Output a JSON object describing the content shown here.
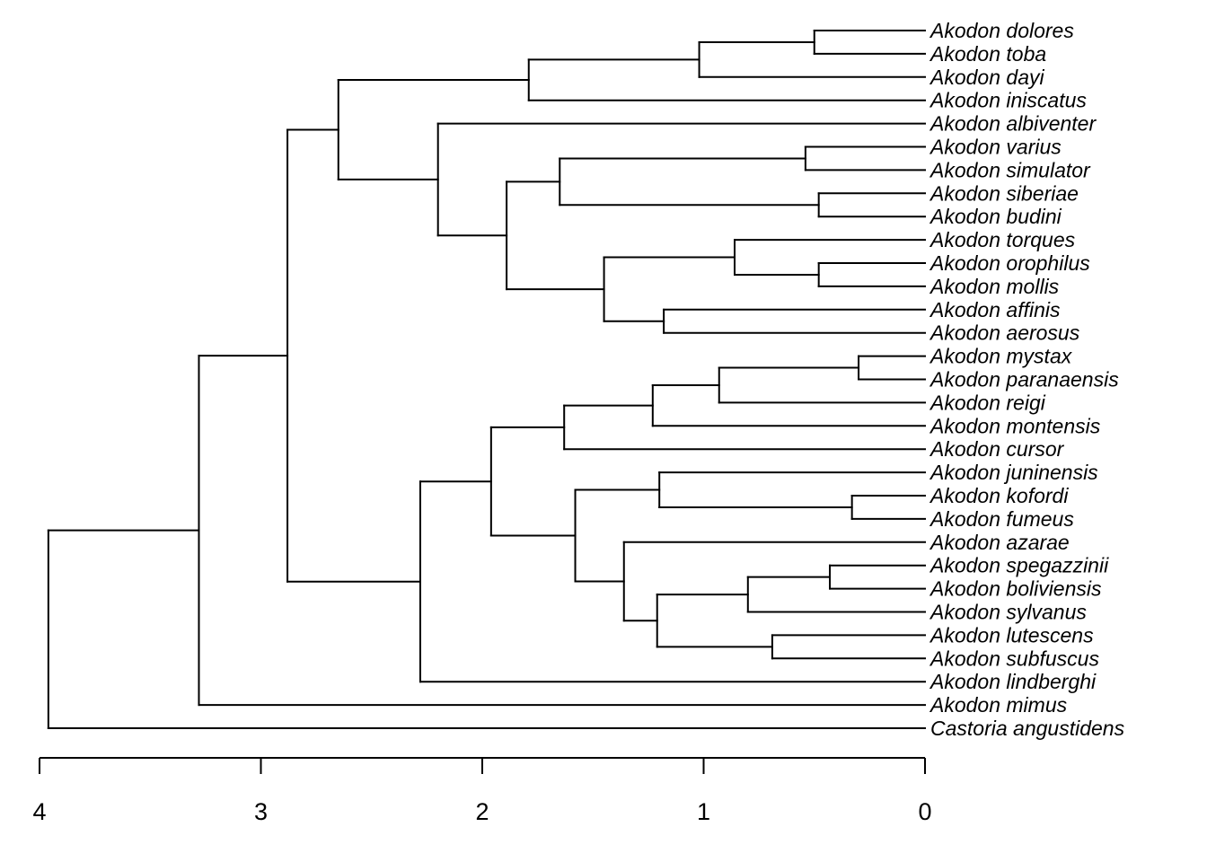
{
  "chart_data": {
    "type": "dendrogram",
    "title": "",
    "xlabel": "",
    "x_axis": {
      "ticks": [
        4,
        3,
        2,
        1,
        0
      ],
      "tick_labels": [
        "4",
        "3",
        "2",
        "1",
        "0"
      ],
      "direction": "reversed",
      "range": [
        4,
        0
      ]
    },
    "grid": false,
    "legend": "none",
    "tips": [
      "Akodon dolores",
      "Akodon toba",
      "Akodon dayi",
      "Akodon iniscatus",
      "Akodon albiventer",
      "Akodon varius",
      "Akodon simulator",
      "Akodon siberiae",
      "Akodon budini",
      "Akodon torques",
      "Akodon orophilus",
      "Akodon mollis",
      "Akodon affinis",
      "Akodon aerosus",
      "Akodon mystax",
      "Akodon paranaensis",
      "Akodon reigi",
      "Akodon montensis",
      "Akodon cursor",
      "Akodon juninensis",
      "Akodon kofordi",
      "Akodon fumeus",
      "Akodon azarae",
      "Akodon spegazzinii",
      "Akodon boliviensis",
      "Akodon sylvanus",
      "Akodon lutescens",
      "Akodon subfuscus",
      "Akodon lindberghi",
      "Akodon mimus",
      "Castoria angustidens"
    ],
    "tree": {
      "h": 3.96,
      "children": [
        {
          "h": 3.28,
          "children": [
            {
              "h": 2.88,
              "children": [
                {
                  "h": 2.65,
                  "children": [
                    {
                      "h": 1.79,
                      "children": [
                        {
                          "h": 1.02,
                          "children": [
                            {
                              "h": 0.5,
                              "children": [
                                {
                                  "tip": 0
                                },
                                {
                                  "tip": 1
                                }
                              ]
                            },
                            {
                              "tip": 2
                            }
                          ]
                        },
                        {
                          "tip": 3
                        }
                      ]
                    },
                    {
                      "h": 2.2,
                      "children": [
                        {
                          "tip": 4
                        },
                        {
                          "h": 1.89,
                          "children": [
                            {
                              "h": 1.65,
                              "children": [
                                {
                                  "h": 0.54,
                                  "children": [
                                    {
                                      "tip": 5
                                    },
                                    {
                                      "tip": 6
                                    }
                                  ]
                                },
                                {
                                  "h": 0.48,
                                  "children": [
                                    {
                                      "tip": 7
                                    },
                                    {
                                      "tip": 8
                                    }
                                  ]
                                }
                              ]
                            },
                            {
                              "h": 1.45,
                              "children": [
                                {
                                  "h": 0.86,
                                  "children": [
                                    {
                                      "tip": 9
                                    },
                                    {
                                      "h": 0.48,
                                      "children": [
                                        {
                                          "tip": 10
                                        },
                                        {
                                          "tip": 11
                                        }
                                      ]
                                    }
                                  ]
                                },
                                {
                                  "h": 1.18,
                                  "children": [
                                    {
                                      "tip": 12
                                    },
                                    {
                                      "tip": 13
                                    }
                                  ]
                                }
                              ]
                            }
                          ]
                        }
                      ]
                    }
                  ]
                },
                {
                  "h": 2.28,
                  "children": [
                    {
                      "h": 1.96,
                      "children": [
                        {
                          "h": 1.63,
                          "children": [
                            {
                              "h": 1.23,
                              "children": [
                                {
                                  "h": 0.93,
                                  "children": [
                                    {
                                      "h": 0.3,
                                      "children": [
                                        {
                                          "tip": 14
                                        },
                                        {
                                          "tip": 15
                                        }
                                      ]
                                    },
                                    {
                                      "tip": 16
                                    }
                                  ]
                                },
                                {
                                  "tip": 17
                                }
                              ]
                            },
                            {
                              "tip": 18
                            }
                          ]
                        },
                        {
                          "h": 1.58,
                          "children": [
                            {
                              "h": 1.2,
                              "children": [
                                {
                                  "tip": 19
                                },
                                {
                                  "h": 0.33,
                                  "children": [
                                    {
                                      "tip": 20
                                    },
                                    {
                                      "tip": 21
                                    }
                                  ]
                                }
                              ]
                            },
                            {
                              "h": 1.36,
                              "children": [
                                {
                                  "tip": 22
                                },
                                {
                                  "h": 1.21,
                                  "children": [
                                    {
                                      "h": 0.8,
                                      "children": [
                                        {
                                          "h": 0.43,
                                          "children": [
                                            {
                                              "tip": 23
                                            },
                                            {
                                              "tip": 24
                                            }
                                          ]
                                        },
                                        {
                                          "tip": 25
                                        }
                                      ]
                                    },
                                    {
                                      "h": 0.69,
                                      "children": [
                                        {
                                          "tip": 26
                                        },
                                        {
                                          "tip": 27
                                        }
                                      ]
                                    }
                                  ]
                                }
                              ]
                            }
                          ]
                        }
                      ]
                    },
                    {
                      "tip": 28
                    }
                  ]
                }
              ]
            },
            {
              "tip": 29
            }
          ]
        },
        {
          "tip": 30
        }
      ]
    }
  }
}
